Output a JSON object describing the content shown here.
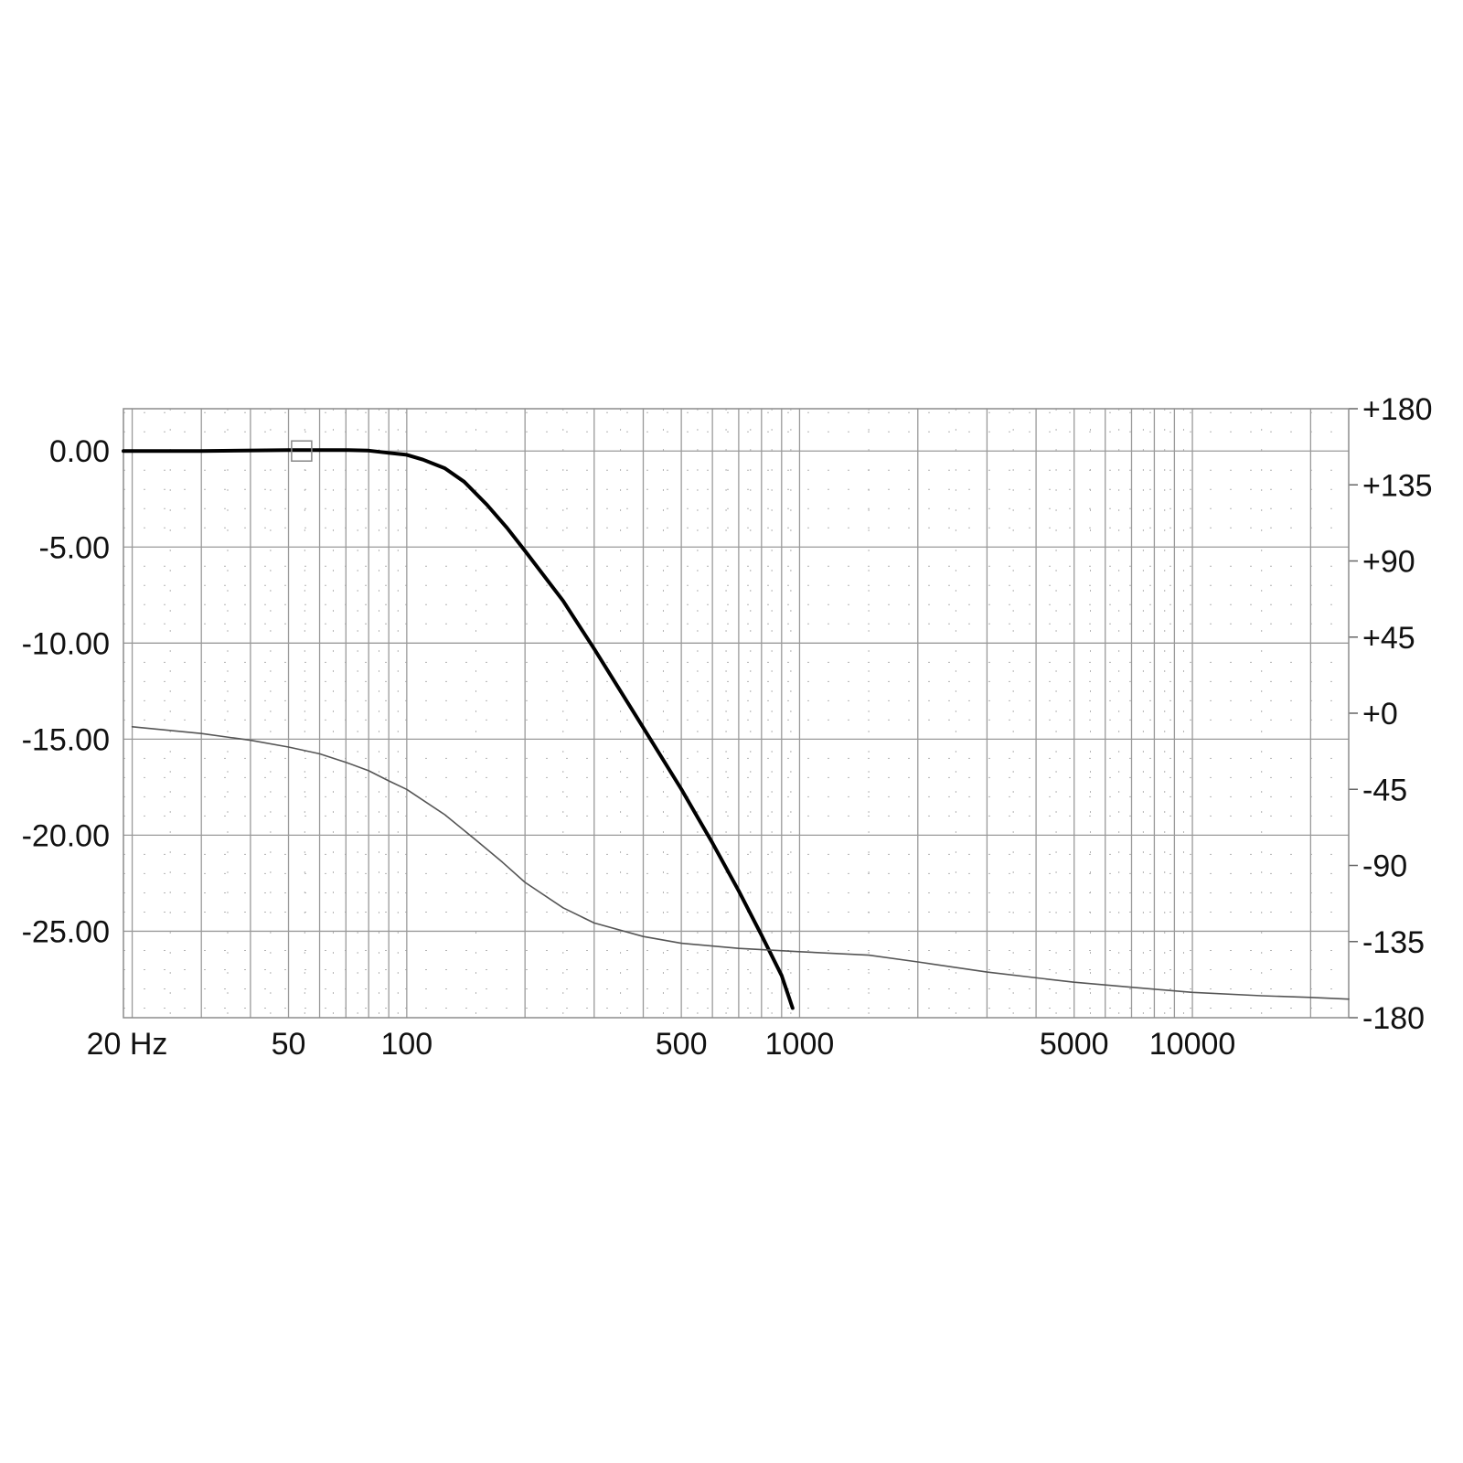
{
  "chart_data": {
    "type": "line",
    "title": "",
    "xlabel": "",
    "ylabel": "",
    "x_scale": "log",
    "xlim": [
      19,
      25000
    ],
    "x_ticks": [
      {
        "value": 20,
        "label": "20 Hz"
      },
      {
        "value": 50,
        "label": "50"
      },
      {
        "value": 100,
        "label": "100"
      },
      {
        "value": 500,
        "label": "500"
      },
      {
        "value": 1000,
        "label": "1000"
      },
      {
        "value": 5000,
        "label": "5000"
      },
      {
        "value": 10000,
        "label": "10000"
      }
    ],
    "ylim": [
      -29.5,
      2.2
    ],
    "y_ticks": [
      {
        "value": 0,
        "label": "0.00"
      },
      {
        "value": -5,
        "label": "-5.00"
      },
      {
        "value": -10,
        "label": "-10.00"
      },
      {
        "value": -15,
        "label": "-15.00"
      },
      {
        "value": -20,
        "label": "-20.00"
      },
      {
        "value": -25,
        "label": "-25.00"
      }
    ],
    "y2lim": [
      -180,
      180
    ],
    "y2_ticks": [
      {
        "value": 180,
        "label": "+180"
      },
      {
        "value": 135,
        "label": "+135"
      },
      {
        "value": 90,
        "label": "+90"
      },
      {
        "value": 45,
        "label": "+45"
      },
      {
        "value": 0,
        "label": "+0"
      },
      {
        "value": -45,
        "label": "-45"
      },
      {
        "value": -90,
        "label": "-90"
      },
      {
        "value": -135,
        "label": "-135"
      },
      {
        "value": -180,
        "label": "-180"
      }
    ],
    "grid": true,
    "series": [
      {
        "axis": "left",
        "color": "#000000",
        "weight": "bold",
        "points": [
          [
            19,
            0.0
          ],
          [
            30,
            0.0
          ],
          [
            50,
            0.05
          ],
          [
            70,
            0.05
          ],
          [
            80,
            0.02
          ],
          [
            90,
            -0.1
          ],
          [
            100,
            -0.2
          ],
          [
            110,
            -0.45
          ],
          [
            125,
            -0.9
          ],
          [
            140,
            -1.6
          ],
          [
            160,
            -2.8
          ],
          [
            180,
            -4.0
          ],
          [
            200,
            -5.2
          ],
          [
            250,
            -7.8
          ],
          [
            300,
            -10.3
          ],
          [
            350,
            -12.5
          ],
          [
            400,
            -14.4
          ],
          [
            500,
            -17.6
          ],
          [
            600,
            -20.4
          ],
          [
            700,
            -22.9
          ],
          [
            800,
            -25.2
          ],
          [
            900,
            -27.3
          ],
          [
            960,
            -29.0
          ]
        ]
      },
      {
        "axis": "right",
        "color": "#555555",
        "weight": "thin",
        "points": [
          [
            20,
            -8
          ],
          [
            30,
            -12
          ],
          [
            40,
            -16
          ],
          [
            50,
            -20
          ],
          [
            60,
            -24
          ],
          [
            70,
            -29
          ],
          [
            80,
            -34
          ],
          [
            90,
            -40
          ],
          [
            100,
            -45
          ],
          [
            125,
            -60
          ],
          [
            150,
            -75
          ],
          [
            175,
            -88
          ],
          [
            200,
            -100
          ],
          [
            250,
            -115
          ],
          [
            300,
            -124
          ],
          [
            400,
            -132
          ],
          [
            500,
            -136
          ],
          [
            700,
            -139
          ],
          [
            1000,
            -141
          ],
          [
            1500,
            -143
          ],
          [
            2000,
            -147
          ],
          [
            3000,
            -153
          ],
          [
            5000,
            -159
          ],
          [
            7000,
            -162
          ],
          [
            10000,
            -165
          ],
          [
            15000,
            -167
          ],
          [
            20000,
            -168
          ],
          [
            25000,
            -169
          ]
        ]
      }
    ],
    "annotations": [
      {
        "type": "marker-box",
        "x": 54,
        "y": 0.0
      }
    ]
  }
}
